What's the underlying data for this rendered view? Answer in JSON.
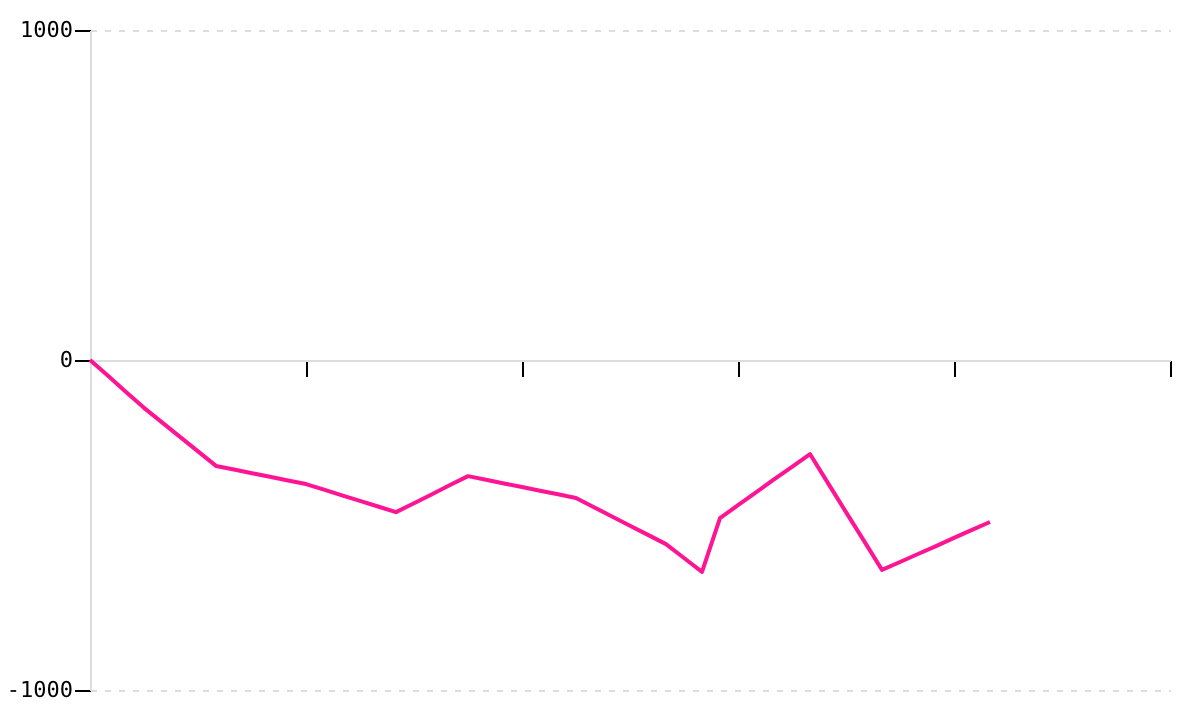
{
  "chart_data": {
    "type": "line",
    "categories": [
      null,
      null,
      null,
      null,
      null,
      null,
      null,
      null,
      null,
      null,
      null,
      null,
      null,
      null,
      null,
      null,
      null,
      null,
      null,
      null,
      null,
      null,
      null,
      null,
      null,
      null,
      null,
      null,
      null,
      null,
      null,
      null,
      null,
      null,
      null,
      null,
      null,
      null,
      null,
      null,
      null,
      null,
      null,
      null,
      null,
      null,
      null,
      null,
      null,
      null,
      null,
      null,
      null,
      null,
      null,
      null,
      null,
      null,
      null,
      null,
      null
    ],
    "series": [
      {
        "color": "#ff1493",
        "values": [
          0,
          -48,
          -97,
          -145,
          -189,
          -233,
          -277,
          -321,
          -332,
          -343,
          -354,
          -365,
          -376,
          -393,
          -410,
          -427,
          -444,
          -461,
          -434,
          -407,
          -379,
          -352,
          -363,
          -374,
          -385,
          -396,
          -407,
          -418,
          -446,
          -474,
          -502,
          -530,
          -558,
          -600,
          -642,
          -479,
          -440,
          -401,
          -362,
          -324,
          -285,
          -373,
          -461,
          -548,
          -636,
          -612,
          -588,
          -564,
          -539,
          -515,
          -491,
          null,
          null,
          null,
          null,
          null,
          null,
          null,
          null,
          null,
          null
        ]
      }
    ],
    "ylim": [
      -1000,
      1000
    ],
    "yticks": [
      -1000,
      0,
      1000
    ],
    "tick_labels": "y",
    "grid": "y",
    "marker": "none",
    "line_style": "solid"
  }
}
